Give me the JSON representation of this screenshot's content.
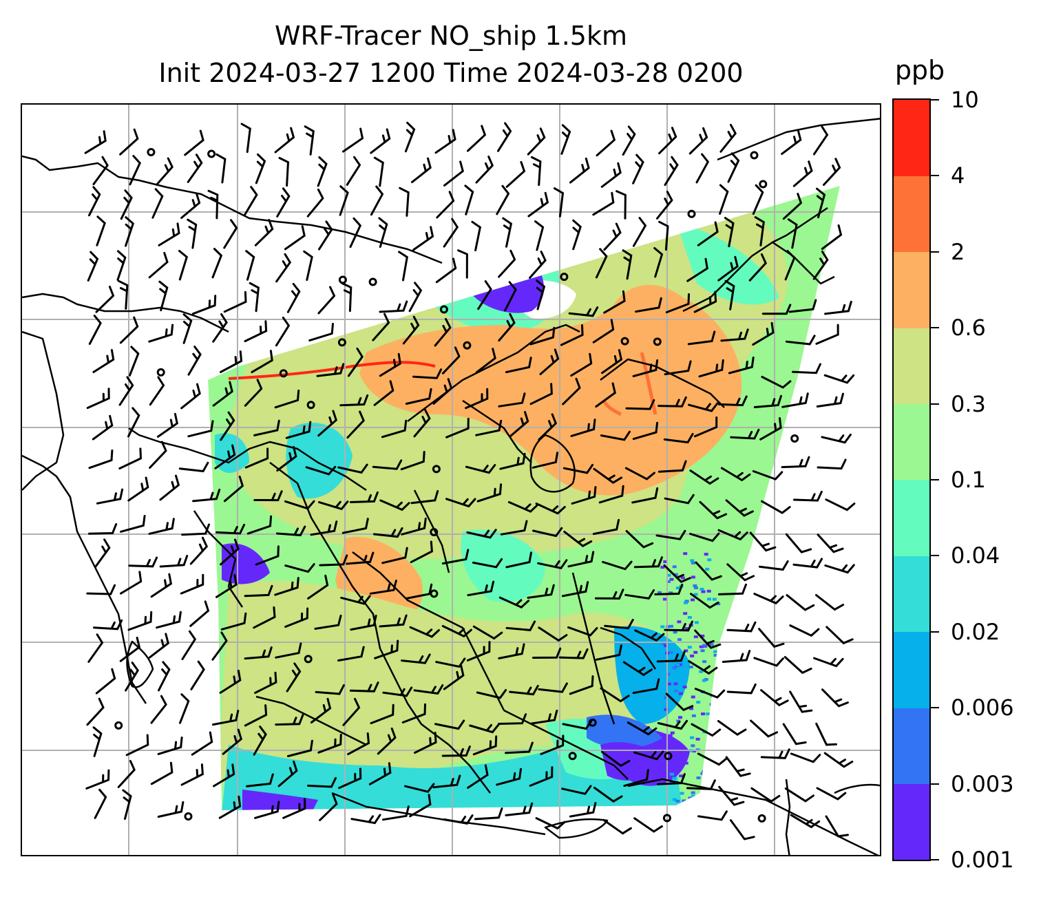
{
  "title": {
    "line1": "WRF-Tracer NO_ship 1.5km",
    "line2": "Init 2024-03-27 1200 Time 2024-03-28 0200"
  },
  "colorbar": {
    "unit": "ppb",
    "levels": [
      "0.001",
      "0.003",
      "0.006",
      "0.02",
      "0.04",
      "0.1",
      "0.3",
      "0.6",
      "2",
      "4",
      "10"
    ],
    "colors": [
      "#6528fa",
      "#3274f4",
      "#06b0ea",
      "#34ddd8",
      "#64fbbf",
      "#9bf791",
      "#cde384",
      "#fdb061",
      "#fe7137",
      "#ff2616"
    ]
  },
  "map": {
    "projection": "Lambert conformal, East/Southeast Asia",
    "gridlines": true,
    "coastlines": true,
    "overlay": "wind barbs",
    "field_summary": {
      "south_china_and_central_east_china": "0.6-2",
      "yellow_sea_and_east_china_sea": "0.3-0.6",
      "indochina_and_south_china_sea": "0.1-0.6",
      "mongolia_and_north_china_plain": "0.001-0.04",
      "western_pacific_and_indonesia_margins": "0.001-0.02"
    }
  }
}
